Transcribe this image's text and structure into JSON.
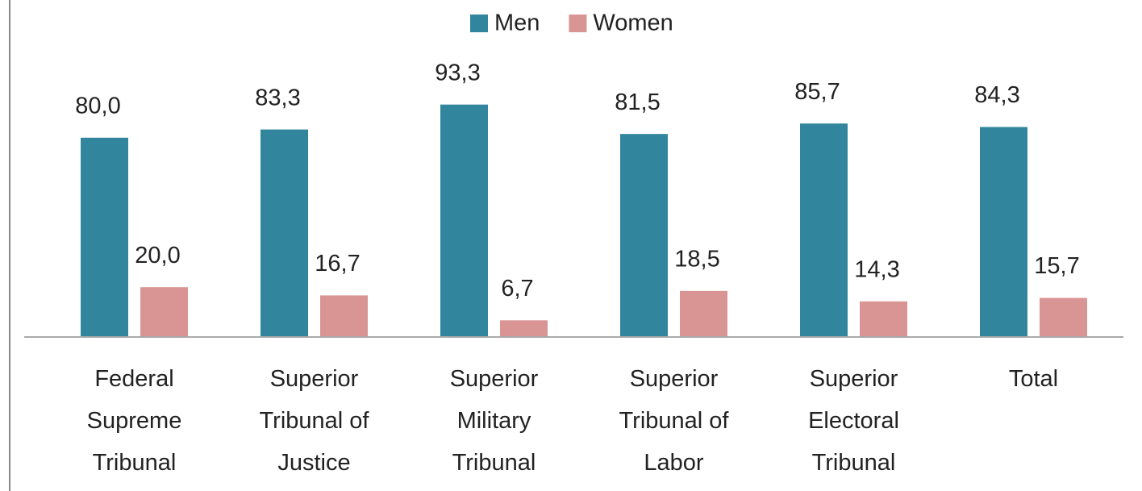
{
  "chart_data": {
    "type": "bar",
    "categories": [
      "Federal Supreme Tribunal",
      "Superior Tribunal of Justice",
      "Superior Military Tribunal",
      "Superior Tribunal of Labor",
      "Superior Electoral Tribunal",
      "Total"
    ],
    "series": [
      {
        "name": "Men",
        "color": "#31859c",
        "values": [
          80.0,
          83.3,
          93.3,
          81.5,
          85.7,
          84.3
        ],
        "value_labels": [
          "80,0",
          "83,3",
          "93,3",
          "81,5",
          "85,7",
          "84,3"
        ]
      },
      {
        "name": "Women",
        "color": "#d99594",
        "values": [
          20.0,
          16.7,
          6.7,
          18.5,
          14.3,
          15.7
        ],
        "value_labels": [
          "20,0",
          "16,7",
          "6,7",
          "18,5",
          "14,3",
          "15,7"
        ]
      }
    ],
    "ylim": [
      0,
      100
    ],
    "legend": "top"
  }
}
